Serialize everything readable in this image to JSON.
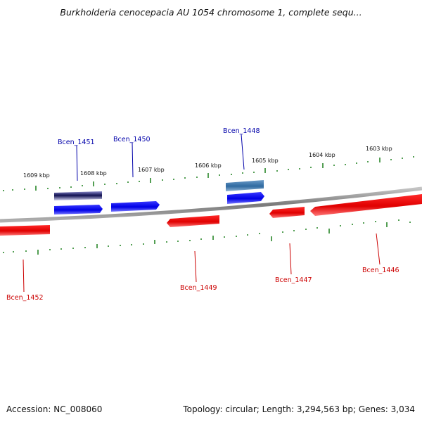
{
  "title": "Burkholderia cenocepacia AU 1054 chromosome 1, complete sequ...",
  "footer": {
    "accession": "Accession: NC_008060",
    "stats": "Topology: circular; Length: 3,294,563 bp; Genes: 3,034"
  },
  "scale_labels": [
    "1603 kbp",
    "1604 kbp",
    "1605 kbp",
    "1606 kbp",
    "1607 kbp",
    "1608 kbp",
    "1609 kbp"
  ],
  "genes_forward": [
    {
      "name": "Bcen_1451",
      "color": "#0000cc"
    },
    {
      "name": "Bcen_1450",
      "color": "#0000cc"
    },
    {
      "name": "Bcen_1448",
      "color": "#0000cc"
    }
  ],
  "genes_reverse": [
    {
      "name": "Bcen_1452",
      "color": "#cc0000"
    },
    {
      "name": "Bcen_1449",
      "color": "#cc0000"
    },
    {
      "name": "Bcen_1447",
      "color": "#cc0000"
    },
    {
      "name": "Bcen_1446",
      "color": "#cc0000"
    }
  ],
  "colors": {
    "forward": "#0000ee",
    "reverse": "#ee0000",
    "backbone": "#888888",
    "ticks": "#1a7f1a"
  }
}
